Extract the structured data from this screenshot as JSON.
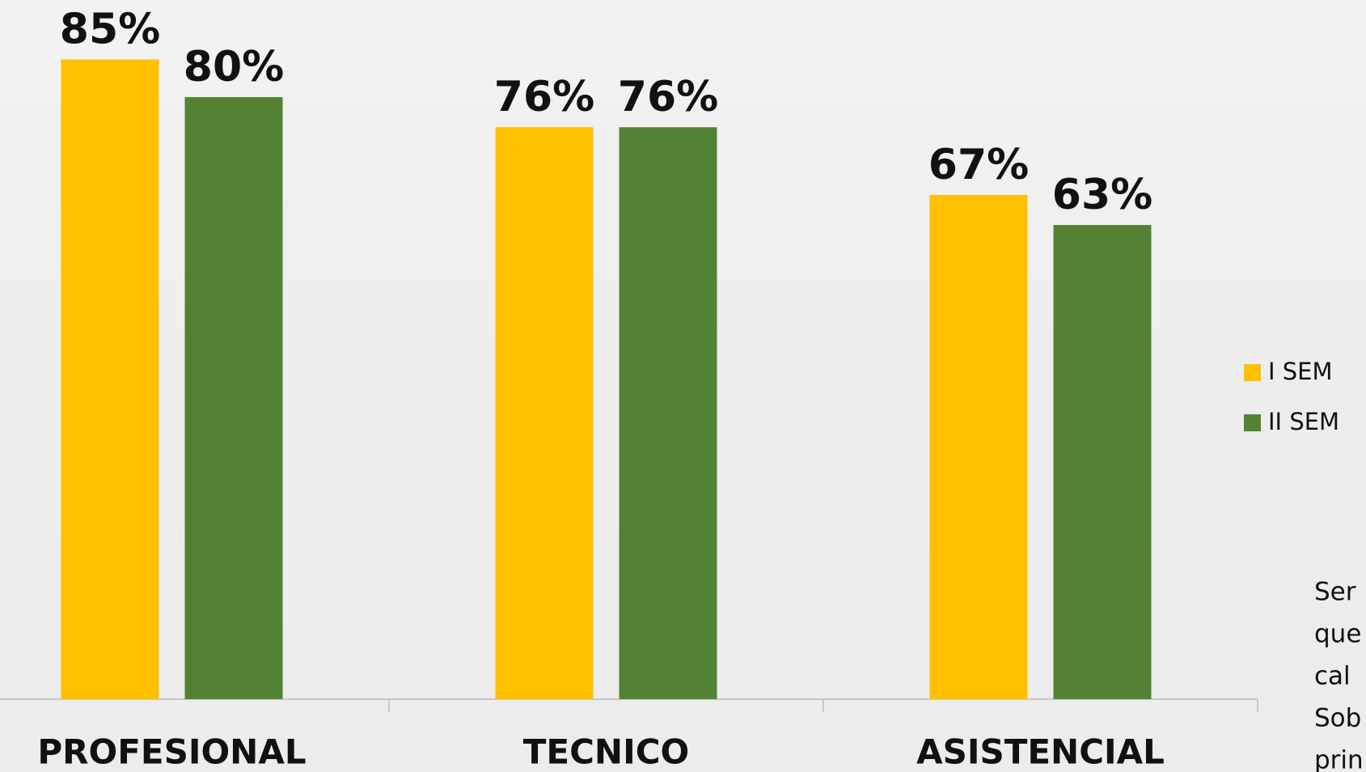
{
  "chart_data": {
    "type": "bar",
    "categories": [
      "PROFESIONAL",
      "TECNICO",
      "ASISTENCIAL"
    ],
    "series": [
      {
        "name": "I SEM",
        "color": "#ffc000",
        "values": [
          85,
          76,
          67
        ],
        "value_labels": [
          "85%",
          "76%",
          "67%"
        ]
      },
      {
        "name": "II SEM",
        "color": "#548235",
        "values": [
          80,
          76,
          63
        ],
        "value_labels": [
          "80%",
          "76%",
          "63%"
        ]
      }
    ],
    "ylim": [
      0,
      100
    ],
    "legend": "right",
    "note_lines": [
      "Ser",
      "que",
      "cal",
      "Sob",
      "prin"
    ]
  }
}
